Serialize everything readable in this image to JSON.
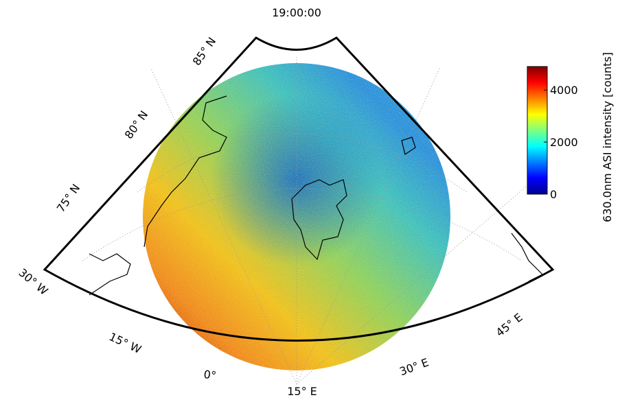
{
  "title": "19:00:00",
  "colorbar": {
    "label": "630.0nm ASI intensity [counts]",
    "lim": [
      0,
      4900
    ],
    "ticks": [
      0,
      2000,
      4000
    ]
  },
  "lat_labels": [
    "85° N",
    "80° N",
    "75° N"
  ],
  "lon_labels": [
    "30° W",
    "15° W",
    "0°",
    "15° E",
    "30° E",
    "45° E"
  ]
}
